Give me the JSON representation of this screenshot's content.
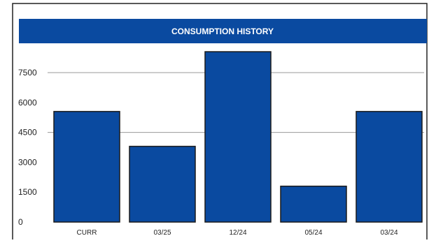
{
  "colors": {
    "header_bg": "#0a4aa0",
    "bar_fill": "#0a4aa0",
    "bar_stroke": "#1a1a1a",
    "gridline": "#9a9a9a",
    "border": "#222222",
    "text": "#222222",
    "header_text": "#ffffff"
  },
  "chart_data": {
    "type": "bar",
    "title": "CONSUMPTION HISTORY",
    "categories": [
      "CURR",
      "03/25",
      "12/24",
      "05/24",
      "03/24"
    ],
    "values": [
      5550,
      3800,
      8550,
      1800,
      5550
    ],
    "ylim": [
      0,
      9000
    ],
    "yticks": [
      0,
      1500,
      3000,
      4500,
      6000,
      7500
    ],
    "ytick_labels": [
      "0",
      "1500",
      "3000",
      "4500",
      "6000",
      "7500"
    ],
    "gridlines": [
      4500,
      7500
    ],
    "legend": "none"
  }
}
